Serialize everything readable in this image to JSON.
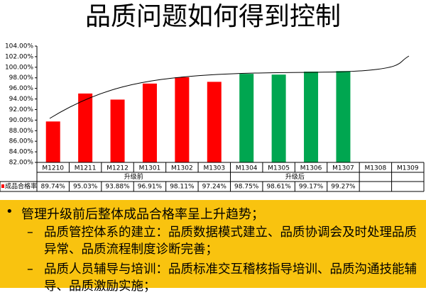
{
  "title": "品质问题如何得到控制",
  "chart_data": {
    "type": "bar",
    "categories": [
      "M1210",
      "M1211",
      "M1212",
      "M1301",
      "M1302",
      "M1303",
      "M1304",
      "M1305",
      "M1306",
      "M1307",
      "M1308",
      "M1309"
    ],
    "group_labels": [
      "升级前",
      "升级后"
    ],
    "series": [
      {
        "name": "成品合格率",
        "color": "#ff0000",
        "colors": [
          "#ff0000",
          "#ff0000",
          "#ff0000",
          "#ff0000",
          "#ff0000",
          "#ff0000",
          "#00a650",
          "#00a650",
          "#00a650",
          "#00a650",
          null,
          null
        ],
        "values": [
          89.74,
          95.03,
          93.88,
          96.91,
          98.11,
          97.24,
          98.75,
          98.61,
          99.17,
          99.27,
          null,
          null
        ],
        "value_labels": [
          "89.74%",
          "95.03%",
          "93.88%",
          "96.91%",
          "98.11%",
          "97.24%",
          "98.75%",
          "98.61%",
          "99.17%",
          "99.27%",
          null,
          null
        ]
      }
    ],
    "ylim": [
      82,
      104
    ],
    "yticks": [
      {
        "value": 82,
        "label": "82.00%"
      },
      {
        "value": 84,
        "label": "84.00%"
      },
      {
        "value": 86,
        "label": "86.00%"
      },
      {
        "value": 88,
        "label": "88.00%"
      },
      {
        "value": 90,
        "label": "90.00%"
      },
      {
        "value": 92,
        "label": "92.00%"
      },
      {
        "value": 94,
        "label": "94.00%"
      },
      {
        "value": 96,
        "label": "96.00%"
      },
      {
        "value": 98,
        "label": "98.00%"
      },
      {
        "value": 100,
        "label": "100.00%"
      },
      {
        "value": 102,
        "label": "102.00%"
      },
      {
        "value": 104,
        "label": "104.00%"
      }
    ]
  },
  "bullets": {
    "text": "管理升级前后整体成品合格率呈上升趋势；",
    "subitems": [
      "品质管控体系的建立：品质数据模式建立、品质协调会及时处理品质异常、品质流程制度诊断完善；",
      "品质人员辅导与培训：品质标准交互稽核指导培训、品质沟通技能辅导、品质激励实施；"
    ]
  }
}
